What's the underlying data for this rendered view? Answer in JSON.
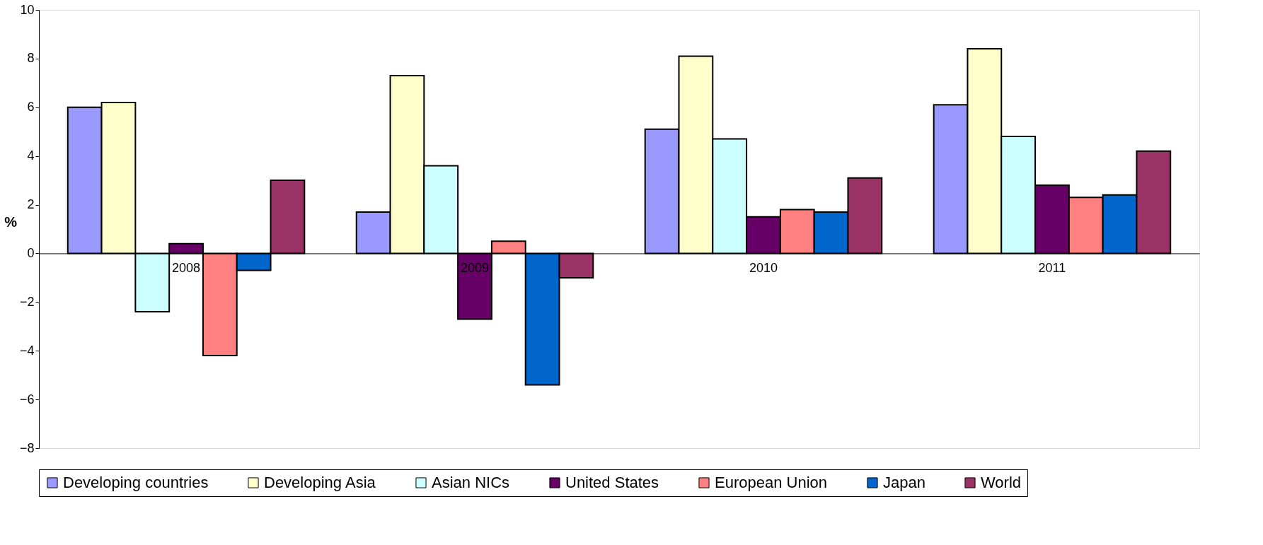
{
  "chart_data": {
    "type": "bar",
    "ylabel": "%",
    "categories": [
      "2008",
      "2009",
      "2010",
      "2011"
    ],
    "series": [
      {
        "name": "Developing countries",
        "color": "#9999ff",
        "values": [
          6.0,
          1.7,
          5.1,
          6.1
        ]
      },
      {
        "name": "Developing Asia",
        "color": "#ffffcc",
        "values": [
          6.2,
          7.3,
          8.1,
          8.4
        ]
      },
      {
        "name": "Asian NICs",
        "color": "#ccffff",
        "values": [
          -2.4,
          3.6,
          4.7,
          4.8
        ]
      },
      {
        "name": "United States",
        "color": "#660066",
        "values": [
          0.4,
          -2.7,
          1.5,
          2.8
        ]
      },
      {
        "name": "European Union",
        "color": "#ff8080",
        "values": [
          -4.2,
          0.5,
          1.8,
          2.3
        ]
      },
      {
        "name": "Japan",
        "color": "#0066cc",
        "values": [
          -0.7,
          -5.4,
          1.7,
          2.4
        ]
      },
      {
        "name": "World",
        "color": "#993366",
        "values": [
          3.0,
          -1.0,
          3.1,
          4.2
        ]
      }
    ],
    "ylim": [
      -8,
      10
    ],
    "yticks": [
      -8,
      -6,
      -4,
      -2,
      0,
      2,
      4,
      6,
      8,
      10
    ],
    "grid": false,
    "legend": "bottom"
  }
}
